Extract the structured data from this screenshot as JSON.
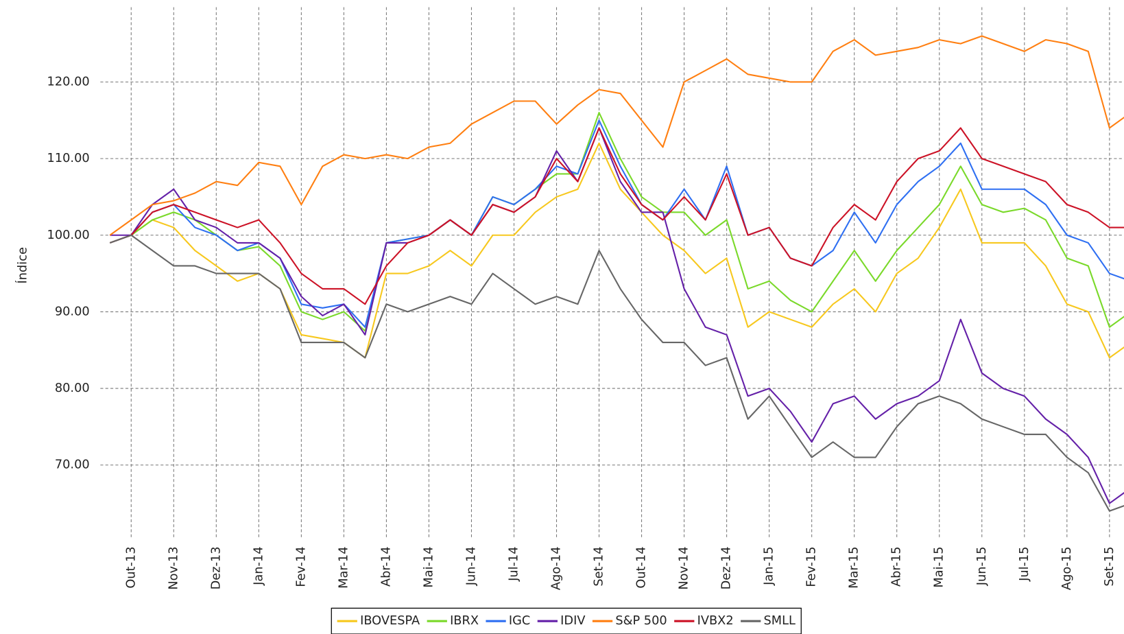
{
  "chart_data": {
    "type": "line",
    "y_label": "Índice",
    "categories": [
      null,
      "Out-13",
      null,
      "Nov-13",
      null,
      "Dez-13",
      null,
      "Jan-14",
      null,
      "Fev-14",
      null,
      "Mar-14",
      null,
      "Abr-14",
      null,
      "Mai-14",
      null,
      "Jun-14",
      null,
      "Jul-14",
      null,
      "Ago-14",
      null,
      "Set-14",
      null,
      "Out-14",
      null,
      "Nov-14",
      null,
      "Dez-14",
      null,
      "Jan-15",
      null,
      "Fev-15",
      null,
      "Mar-15",
      null,
      "Abr-15",
      null,
      "Mai-15",
      null,
      "Jun-15",
      null,
      "Jul-15",
      null,
      "Ago-15",
      null,
      "Set-15",
      null
    ],
    "ylim": [
      60.3,
      130.7
    ],
    "yticks": [
      {
        "value": 70,
        "label": "70.00"
      },
      {
        "value": 80,
        "label": "80.00"
      },
      {
        "value": 90,
        "label": "90.00"
      },
      {
        "value": 100,
        "label": "100.00"
      },
      {
        "value": 110,
        "label": "110.00"
      },
      {
        "value": 120,
        "label": "120.00"
      }
    ],
    "grid": true,
    "legend": "bottom",
    "series": [
      {
        "name": "IBOVESPA",
        "color": "#f7c81e",
        "values": [
          99,
          100,
          102,
          101,
          98,
          96,
          94,
          95,
          93,
          87,
          86.5,
          86,
          84,
          95,
          95,
          96,
          98,
          96,
          100,
          100,
          103,
          105,
          106,
          112,
          106,
          103,
          100,
          98,
          95,
          97,
          88,
          90,
          89,
          88,
          91,
          93,
          90,
          95,
          97,
          101,
          106,
          99,
          99,
          99,
          96,
          91,
          90,
          84,
          86
        ]
      },
      {
        "name": "IBRX",
        "color": "#7ad92a",
        "values": [
          99,
          100,
          102,
          103,
          102,
          100,
          98,
          98.5,
          96,
          90,
          89,
          90,
          87.5,
          99,
          99.5,
          100,
          102,
          100,
          105,
          104,
          106,
          108,
          108,
          116,
          110,
          105,
          103,
          103,
          100,
          102,
          93,
          94,
          91.5,
          90,
          94,
          98,
          94,
          98,
          101,
          104,
          109,
          104,
          103,
          103.5,
          102,
          97,
          96,
          88,
          90
        ]
      },
      {
        "name": "IGC",
        "color": "#2e6ff2",
        "values": [
          99,
          100,
          103,
          104,
          101,
          100,
          98,
          99,
          97,
          91,
          90.5,
          91,
          88,
          99,
          99.5,
          100,
          102,
          100,
          105,
          104,
          106,
          109,
          108,
          115,
          109,
          104,
          102,
          106,
          102,
          109,
          100,
          101,
          97,
          96,
          98,
          103,
          99,
          104,
          107,
          109,
          112,
          106,
          106,
          106,
          104,
          100,
          99,
          95,
          94
        ]
      },
      {
        "name": "IDIV",
        "color": "#6420a8",
        "values": [
          100,
          100,
          104,
          106,
          102,
          101,
          99,
          99,
          97,
          92,
          89.5,
          91,
          87,
          99,
          99,
          100,
          102,
          100,
          104,
          103,
          105,
          111,
          107,
          114,
          107,
          103,
          103,
          93,
          88,
          87,
          79,
          80,
          77,
          73,
          78,
          79,
          76,
          78,
          79,
          81,
          89,
          82,
          80,
          79,
          76,
          74,
          71,
          65,
          67
        ]
      },
      {
        "name": "S&P 500",
        "color": "#ff7f11",
        "values": [
          100,
          102,
          104,
          104.5,
          105.5,
          107,
          106.5,
          109.5,
          109,
          104,
          109,
          110.5,
          110,
          110.5,
          110,
          111.5,
          112,
          114.5,
          116,
          117.5,
          117.5,
          114.5,
          117,
          119,
          118.5,
          115,
          111.5,
          120,
          121.5,
          123,
          121,
          120.5,
          120,
          120,
          124,
          125.5,
          123.5,
          124,
          124.5,
          125.5,
          125,
          126,
          125,
          124,
          125.5,
          125,
          124,
          114,
          116
        ]
      },
      {
        "name": "IVBX2",
        "color": "#cc1226",
        "values": [
          99,
          100,
          103,
          104,
          103,
          102,
          101,
          102,
          99,
          95,
          93,
          93,
          91,
          96,
          99,
          100,
          102,
          100,
          104,
          103,
          105,
          110,
          107,
          114,
          108,
          104,
          102,
          105,
          102,
          108,
          100,
          101,
          97,
          96,
          101,
          104,
          102,
          107,
          110,
          111,
          114,
          110,
          109,
          108,
          107,
          104,
          103,
          101,
          101
        ]
      },
      {
        "name": "SMLL",
        "color": "#666666",
        "values": [
          99,
          100,
          98,
          96,
          96,
          95,
          95,
          95,
          93,
          86,
          86,
          86,
          84,
          91,
          90,
          91,
          92,
          91,
          95,
          93,
          91,
          92,
          91,
          98,
          93,
          89,
          86,
          86,
          83,
          84,
          76,
          79,
          75,
          71,
          73,
          71,
          71,
          75,
          78,
          79,
          78,
          76,
          75,
          74,
          74,
          71,
          69,
          64,
          65
        ]
      }
    ]
  }
}
